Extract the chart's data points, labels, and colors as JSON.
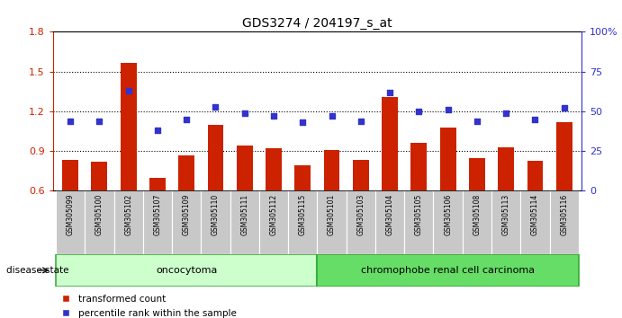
{
  "title": "GDS3274 / 204197_s_at",
  "samples": [
    "GSM305099",
    "GSM305100",
    "GSM305102",
    "GSM305107",
    "GSM305109",
    "GSM305110",
    "GSM305111",
    "GSM305112",
    "GSM305115",
    "GSM305101",
    "GSM305103",
    "GSM305104",
    "GSM305105",
    "GSM305106",
    "GSM305108",
    "GSM305113",
    "GSM305114",
    "GSM305116"
  ],
  "bar_values": [
    0.835,
    0.82,
    1.565,
    0.695,
    0.865,
    1.095,
    0.94,
    0.92,
    0.79,
    0.905,
    0.835,
    1.305,
    0.96,
    1.08,
    0.845,
    0.93,
    0.825,
    1.12
  ],
  "dot_values": [
    44,
    44,
    63,
    38,
    45,
    53,
    49,
    47,
    43,
    47,
    44,
    62,
    50,
    51,
    44,
    49,
    45,
    52
  ],
  "bar_color": "#CC2200",
  "dot_color": "#3333CC",
  "ylim_left": [
    0.6,
    1.8
  ],
  "ylim_right": [
    0,
    100
  ],
  "yticks_left": [
    0.6,
    0.9,
    1.2,
    1.5,
    1.8
  ],
  "yticks_right": [
    0,
    25,
    50,
    75,
    100
  ],
  "ytick_labels_right": [
    "0",
    "25",
    "50",
    "75",
    "100%"
  ],
  "grid_values": [
    0.9,
    1.2,
    1.5
  ],
  "group1_label": "oncocytoma",
  "group2_label": "chromophobe renal cell carcinoma",
  "group1_count": 9,
  "group2_count": 9,
  "disease_state_label": "disease state",
  "legend_bar_label": "transformed count",
  "legend_dot_label": "percentile rank within the sample",
  "group1_bg": "#CCFFCC",
  "group2_bg": "#66DD66",
  "label_bg": "#C8C8C8",
  "bar_baseline": 0.6,
  "fig_width": 6.91,
  "fig_height": 3.54
}
